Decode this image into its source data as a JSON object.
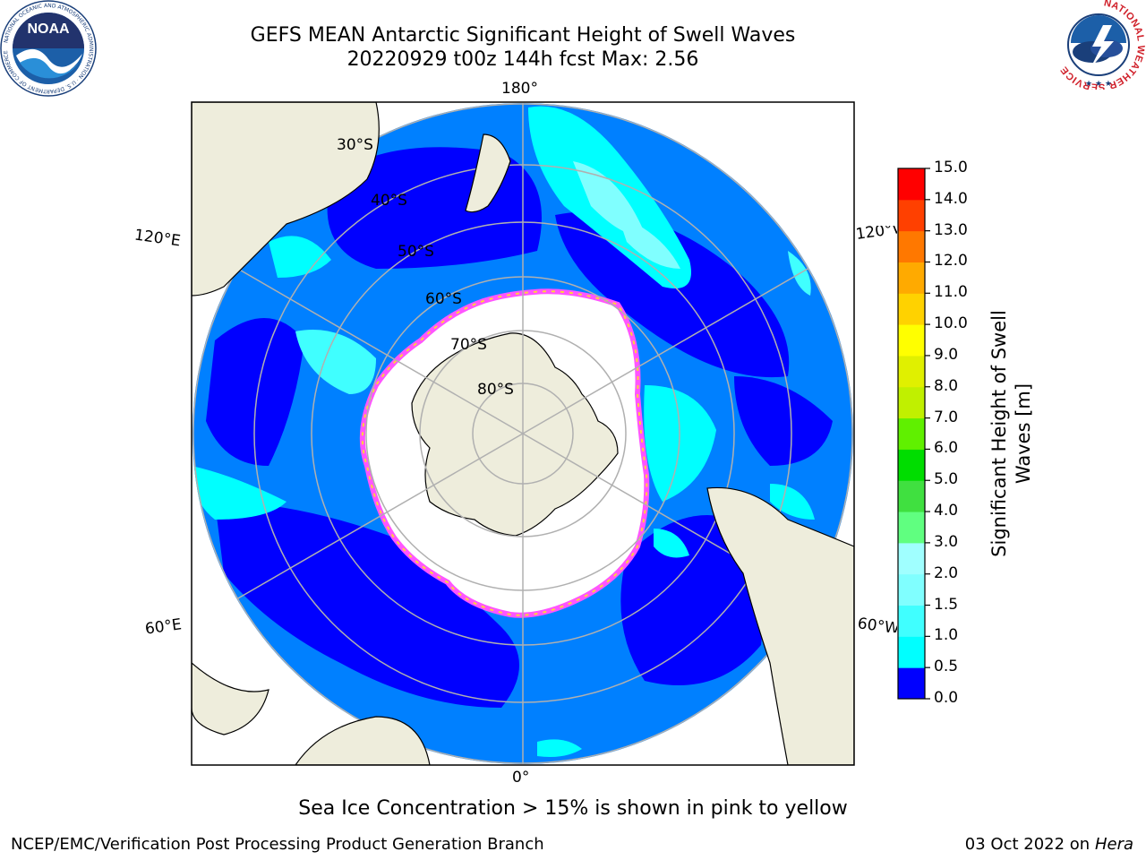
{
  "header": {
    "title_line1": "GEFS MEAN Antarctic Significant Height of Swell Waves",
    "title_line2": "20220929 t00z 144h fcst   Max: 2.56"
  },
  "logos": {
    "left": {
      "name": "noaa-logo",
      "text": "NOAA",
      "ring_text": "NATIONAL OCEANIC AND ATMOSPHERIC ADMINISTRATION · U.S. DEPARTMENT OF COMMERCE"
    },
    "right": {
      "name": "nws-logo",
      "ring_text": "NATIONAL WEATHER SERVICE"
    }
  },
  "map": {
    "projection": "south-polar-stereographic",
    "longitude_labels": {
      "top": "180°",
      "bottom": "0°",
      "upper_left": "120°E",
      "lower_left": "60°E",
      "upper_right": "120°W",
      "lower_right": "60°W"
    },
    "latitude_labels": [
      "30°S",
      "40°S",
      "50°S",
      "60°S",
      "70°S",
      "80°S"
    ],
    "colors": {
      "land": "#eeeddc",
      "ice_free_sea_ice_zone": "#ffffff",
      "graticule": "#b0b0b0",
      "sea_ice_edge_pink": "#ff55ff",
      "sea_ice_edge_yellow": "#ffd23c"
    }
  },
  "colorbar": {
    "title_line1": "Significant Height of Swell",
    "title_line2": "Waves [m]",
    "ticks": [
      "0.0",
      "0.5",
      "1.0",
      "1.5",
      "2.0",
      "3.0",
      "4.0",
      "5.0",
      "6.0",
      "7.0",
      "8.0",
      "9.0",
      "10.0",
      "11.0",
      "12.0",
      "13.0",
      "14.0",
      "15.0"
    ],
    "colors": [
      "#0000ff",
      "#0080ff",
      "#00ffff",
      "#40ffff",
      "#80ffff",
      "#a0ffff",
      "#60ff80",
      "#40e040",
      "#00dd00",
      "#60f000",
      "#c0f000",
      "#e0f000",
      "#ffff00",
      "#ffd200",
      "#ffaa00",
      "#ff7800",
      "#ff4000",
      "#ff0000"
    ]
  },
  "footer": {
    "note": "Sea Ice Concentration > 15% is shown in pink to yellow",
    "left": "NCEP/EMC/Verification Post Processing Product Generation Branch",
    "right_prefix": "03 Oct 2022 on ",
    "right_host": "Hera"
  }
}
